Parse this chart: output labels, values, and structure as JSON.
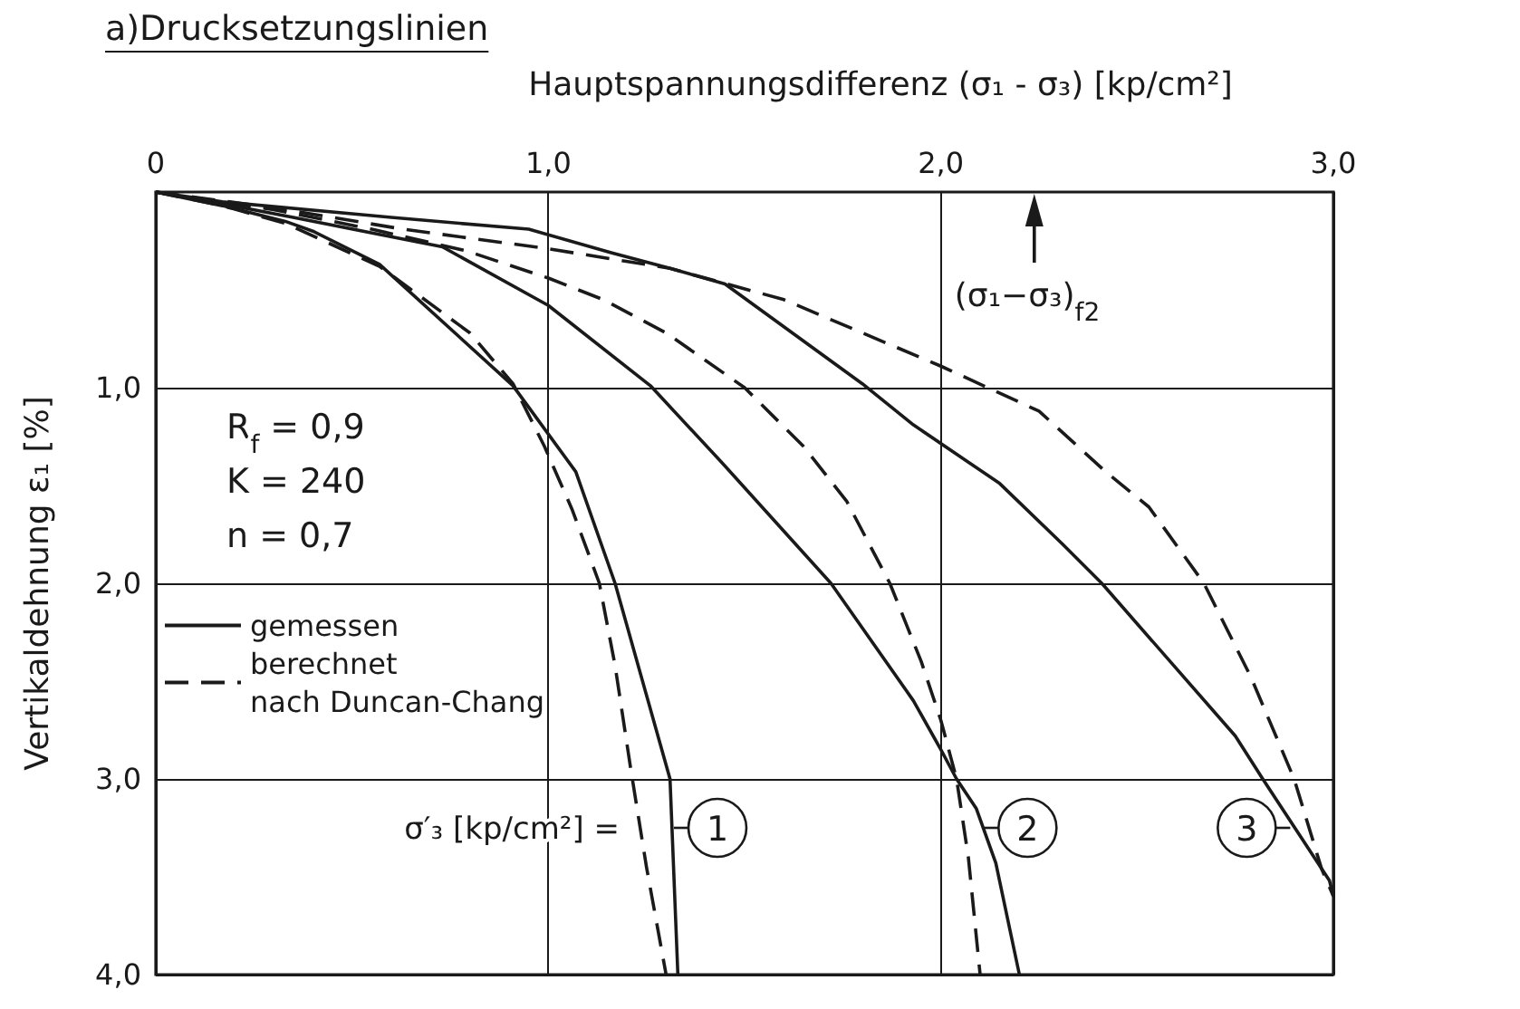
{
  "chart_data": {
    "type": "line",
    "title": "a)Drucksetzungslinien",
    "xlabel": "Hauptspannungsdifferenz (σ₁ - σ₃) [kp/cm²]",
    "ylabel": "Vertikaldehnung ε₁ [%]",
    "xlim": [
      0,
      3
    ],
    "xticks": [
      0,
      {
        "value": 1,
        "label": "1,0"
      },
      {
        "value": 2,
        "label": "2,0"
      },
      {
        "value": 3,
        "label": "3,0"
      }
    ],
    "ylim": [
      4,
      0
    ],
    "yticks": [
      {
        "value": 1,
        "label": "1,0"
      },
      {
        "value": 2,
        "label": "2,0"
      },
      {
        "value": 3,
        "label": "3,0"
      },
      {
        "value": 4,
        "label": "4,0"
      }
    ],
    "grid": true,
    "legend": "left",
    "marker": "none",
    "series": [
      {
        "name": "gemessen",
        "color": "#1a1a1a",
        "line_style": "solid",
        "x": [
          0,
          0.17,
          0.33,
          0.4,
          0.57,
          0.91,
          1.07,
          1.17,
          1.31,
          1.33
        ],
        "values": [
          0,
          0.07,
          0.15,
          0.2,
          0.37,
          0.99,
          1.43,
          2.0,
          3.0,
          4.0
        ]
      },
      {
        "name": "berechnet nach Duncan-Chang",
        "color": "#1a1a1a",
        "line_style": "dashed",
        "x": [
          0,
          0.17,
          0.33,
          0.57,
          0.8,
          0.91,
          0.99,
          1.06,
          1.13,
          1.17,
          1.21,
          1.25,
          1.3
        ],
        "values": [
          0,
          0.07,
          0.16,
          0.38,
          0.72,
          0.98,
          1.3,
          1.62,
          2.0,
          2.42,
          2.95,
          3.45,
          4.0
        ]
      },
      {
        "color": "#1a1a1a",
        "line_style": "solid",
        "x": [
          0,
          0.17,
          0.35,
          0.73,
          1.0,
          1.26,
          1.45,
          1.72,
          1.93,
          2.0,
          2.04,
          2.09,
          2.14,
          2.2
        ],
        "values": [
          0,
          0.06,
          0.13,
          0.28,
          0.58,
          0.99,
          1.4,
          2.0,
          2.6,
          2.85,
          3.0,
          3.15,
          3.43,
          4.0
        ]
      },
      {
        "color": "#1a1a1a",
        "line_style": "dashed",
        "x": [
          0,
          0.3,
          0.55,
          0.79,
          1.0,
          1.14,
          1.3,
          1.5,
          1.65,
          1.76,
          1.87,
          1.95,
          2.0,
          2.04,
          2.07,
          2.1
        ],
        "values": [
          0,
          0.09,
          0.19,
          0.3,
          0.44,
          0.55,
          0.72,
          1.0,
          1.3,
          1.58,
          2.0,
          2.4,
          2.7,
          3.0,
          3.4,
          4.0
        ]
      },
      {
        "color": "#1a1a1a",
        "line_style": "solid",
        "x": [
          0,
          0.17,
          0.6,
          0.95,
          1.16,
          1.31,
          1.45,
          1.8,
          1.93,
          2.15,
          2.31,
          2.41,
          2.75,
          2.82,
          2.99,
          3.0
        ],
        "values": [
          0,
          0.05,
          0.13,
          0.19,
          0.31,
          0.39,
          0.47,
          0.98,
          1.19,
          1.49,
          1.8,
          2.0,
          2.78,
          3.0,
          3.52,
          3.6
        ]
      },
      {
        "color": "#1a1a1a",
        "line_style": "dashed",
        "x": [
          0,
          0.3,
          0.63,
          1.0,
          1.31,
          1.6,
          2.0,
          2.25,
          2.42,
          2.53,
          2.67,
          2.79,
          2.9,
          2.97,
          3.0
        ],
        "values": [
          0,
          0.08,
          0.19,
          0.29,
          0.39,
          0.55,
          0.89,
          1.12,
          1.43,
          1.61,
          2.0,
          2.48,
          3.0,
          3.46,
          3.6
        ]
      }
    ],
    "annotations": [
      "(σ₁−σ₃)$_{f2}$",
      "R$_{f}$ = 0,9",
      "K = 240",
      "n = 0,7",
      "σ′₃ [kp/cm²] =",
      {
        "text": "1",
        "x": 1.32,
        "y": 3.25
      },
      {
        "text": "2",
        "x": 2.11,
        "y": 3.25
      },
      {
        "text": "3",
        "x": 2.89,
        "y": 3.25
      }
    ]
  }
}
